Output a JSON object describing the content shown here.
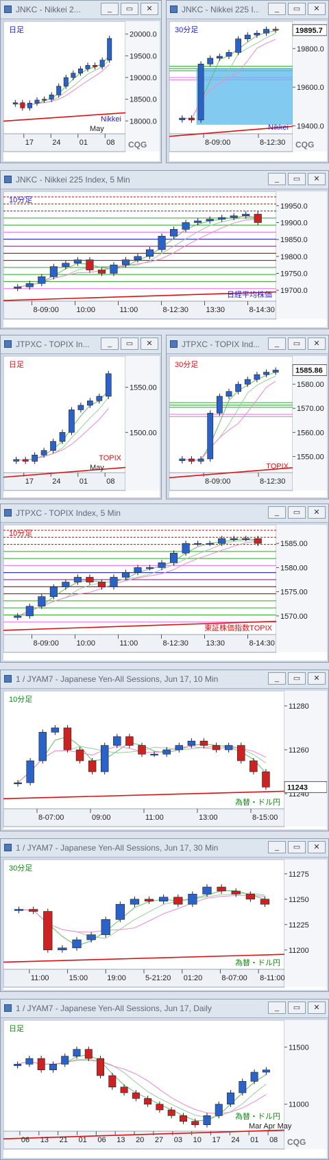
{
  "windows": [
    {
      "id": "w1",
      "title": "JNKC - Nikkei 2...",
      "label": "日足",
      "label_color": "#2222cc",
      "symbol": "Nikkei",
      "symbol_color": "#2222cc",
      "brand": "CQG",
      "right_tag": "",
      "ticks": [
        "20000.0",
        "19500.0",
        "19000.0",
        "18500.0",
        "18000.0"
      ],
      "xticks": [
        "17",
        "24",
        "01",
        "08"
      ],
      "xsub": "May"
    },
    {
      "id": "w2",
      "title": "JNKC - Nikkei 225 I...",
      "label": "30分足",
      "label_color": "#2222cc",
      "symbol": "Nikkei",
      "symbol_color": "#2222cc",
      "brand": "CQG",
      "right_tag": "19895.7",
      "ticks": [
        "19800.0",
        "19600.0",
        "19400.0"
      ],
      "xticks": [
        "8-09:00",
        "8-12:30"
      ],
      "xsub": ""
    },
    {
      "id": "w3",
      "title": "JNKC - Nikkei 225 Index, 5 Min",
      "label": "10分足",
      "label_color": "#2222cc",
      "symbol": "日経平均株価",
      "symbol_color": "#2222cc",
      "brand": "",
      "right_tag": "",
      "ticks": [
        "19950.0",
        "19900.0",
        "19850.0",
        "19800.0",
        "19750.0",
        "19700.0"
      ],
      "xticks": [
        "8-09:00",
        "10:00",
        "11:00",
        "8-12:30",
        "13:30",
        "8-14:30"
      ],
      "xsub": ""
    },
    {
      "id": "w4",
      "title": "JTPXC - TOPIX In...",
      "label": "日足",
      "label_color": "#dd1111",
      "symbol": "TOPIX",
      "symbol_color": "#dd1111",
      "brand": "",
      "right_tag": "",
      "ticks": [
        "1550.00",
        "1500.00"
      ],
      "xticks": [
        "17",
        "24",
        "01",
        "08"
      ],
      "xsub": "May"
    },
    {
      "id": "w5",
      "title": "JTPXC - TOPIX Ind...",
      "label": "30分足",
      "label_color": "#dd1111",
      "symbol": "TOPIX",
      "symbol_color": "#dd1111",
      "brand": "",
      "right_tag": "1585.86",
      "ticks": [
        "1580.00",
        "1570.00",
        "1560.00",
        "1550.00"
      ],
      "xticks": [
        "8-09:00",
        "8-12:30"
      ],
      "xsub": ""
    },
    {
      "id": "w6",
      "title": "JTPXC - TOPIX Index, 5 Min",
      "label": "10分足",
      "label_color": "#dd1111",
      "symbol": "東証株価指数TOPIX",
      "symbol_color": "#dd1111",
      "brand": "",
      "right_tag": "",
      "ticks": [
        "1585.00",
        "1580.00",
        "1575.00",
        "1570.00"
      ],
      "xticks": [
        "8-09:00",
        "10:00",
        "11:00",
        "8-12:30",
        "13:30",
        "8-14:30"
      ],
      "xsub": ""
    },
    {
      "id": "w7",
      "title": "1 / JYAM7 - Japanese Yen-All Sessions, Jun 17, 10 Min",
      "label": "10分足",
      "label_color": "#118811",
      "symbol": "為替・ドル円",
      "symbol_color": "#118811",
      "brand": "",
      "right_tag": "11243",
      "ticks": [
        "11280",
        "11260",
        "11240"
      ],
      "xticks": [
        "8-07:00",
        "09:00",
        "11:00",
        "13:00",
        "8-15:00"
      ],
      "xsub": ""
    },
    {
      "id": "w8",
      "title": "1 / JYAM7 - Japanese Yen-All Sessions, Jun 17, 30 Min",
      "label": "30分足",
      "label_color": "#118811",
      "symbol": "為替・ドル円",
      "symbol_color": "#118811",
      "brand": "",
      "right_tag": "",
      "ticks": [
        "11275",
        "11250",
        "11225",
        "11200"
      ],
      "xticks": [
        "11:00",
        "15:00",
        "19:00",
        "5-21:20",
        "01:20",
        "8-07:00",
        "8-11:00"
      ],
      "xsub": ""
    },
    {
      "id": "w9",
      "title": "1 / JYAM7 - Japanese Yen-All Sessions, Jun 17, Daily",
      "label": "日足",
      "label_color": "#118811",
      "symbol": "為替・ドル円",
      "symbol_color": "#118811",
      "brand": "CQG",
      "right_tag": "",
      "ticks": [
        "11500",
        "11000"
      ],
      "xticks": [
        "06",
        "13",
        "21",
        "01",
        "06",
        "13",
        "20",
        "27",
        "03",
        "10",
        "17",
        "24",
        "01",
        "08"
      ],
      "xsub": "Mar Apr May"
    }
  ],
  "buttons": {
    "minimize": "_",
    "restore": "▭",
    "close": "✕"
  },
  "chart_data": [
    {
      "type": "candlestick",
      "title": "JNKC - Nikkei 2...",
      "ylim": [
        17800,
        20200
      ],
      "series": [
        {
          "name": "Nikkei",
          "values": [
            18420,
            18300,
            18410,
            18480,
            18500,
            18600,
            18800,
            19000,
            19100,
            19200,
            19280,
            19250,
            19400,
            19900
          ]
        }
      ]
    },
    {
      "type": "candlestick",
      "title": "JNKC - Nikkei 225 I...",
      "ylim": [
        19380,
        19920
      ],
      "series": [
        {
          "name": "Nikkei",
          "values": [
            19440,
            19430,
            19720,
            19750,
            19760,
            19780,
            19850,
            19870,
            19880,
            19900,
            19895.7
          ]
        }
      ]
    },
    {
      "type": "candlestick",
      "title": "JNKC - Nikkei 225 Index, 5 Min",
      "ylim": [
        19680,
        19980
      ],
      "series": [
        {
          "name": "日経平均株価",
          "values": [
            19710,
            19720,
            19740,
            19770,
            19780,
            19790,
            19760,
            19750,
            19775,
            19790,
            19800,
            19820,
            19860,
            19880,
            19900,
            19905,
            19910,
            19915,
            19920,
            19925,
            19900
          ]
        }
      ]
    },
    {
      "type": "candlestick",
      "title": "JTPXC - TOPIX In...",
      "ylim": [
        1460,
        1580
      ],
      "series": [
        {
          "name": "TOPIX",
          "values": [
            1470,
            1468,
            1475,
            1480,
            1490,
            1500,
            1525,
            1530,
            1535,
            1540,
            1565
          ]
        }
      ]
    },
    {
      "type": "candlestick",
      "title": "JTPXC - TOPIX Ind...",
      "ylim": [
        1545,
        1590
      ],
      "series": [
        {
          "name": "TOPIX",
          "values": [
            1549,
            1548,
            1549,
            1568,
            1575,
            1577,
            1580,
            1582,
            1584,
            1585,
            1585.86
          ]
        }
      ]
    },
    {
      "type": "candlestick",
      "title": "JTPXC - TOPIX Index, 5 Min",
      "ylim": [
        1567,
        1588
      ],
      "series": [
        {
          "name": "東証株価指数TOPIX",
          "values": [
            1570,
            1572,
            1574,
            1576,
            1577,
            1578,
            1577,
            1576,
            1578,
            1579,
            1580,
            1580,
            1581,
            1583,
            1585,
            1585,
            1585,
            1586,
            1586,
            1586,
            1585
          ]
        }
      ]
    },
    {
      "type": "candlestick",
      "title": "1 / JYAM7 - Japanese Yen-All Sessions, Jun 17, 10 Min",
      "ylim": [
        11235,
        11285
      ],
      "series": [
        {
          "name": "為替・ドル円",
          "values": [
            11245,
            11255,
            11268,
            11270,
            11260,
            11255,
            11250,
            11262,
            11266,
            11262,
            11258,
            11258,
            11260,
            11262,
            11264,
            11262,
            11260,
            11262,
            11255,
            11250,
            11243
          ]
        }
      ]
    },
    {
      "type": "candlestick",
      "title": "1 / JYAM7 - Japanese Yen-All Sessions, Jun 17, 30 Min",
      "ylim": [
        11185,
        11285
      ],
      "series": [
        {
          "name": "為替・ドル円",
          "values": [
            11240,
            11238,
            11200,
            11202,
            11210,
            11215,
            11230,
            11245,
            11250,
            11248,
            11252,
            11245,
            11255,
            11262,
            11258,
            11255,
            11250,
            11245
          ]
        }
      ]
    },
    {
      "type": "candlestick",
      "title": "1 / JYAM7 - Japanese Yen-All Sessions, Jun 17, Daily",
      "ylim": [
        10800,
        11700
      ],
      "series": [
        {
          "name": "為替・ドル円",
          "values": [
            11350,
            11400,
            11300,
            11350,
            11420,
            11480,
            11400,
            11250,
            11150,
            11100,
            11050,
            11000,
            10950,
            10900,
            10850,
            10820,
            10900,
            11000,
            11100,
            11200,
            11280,
            11300
          ]
        }
      ]
    }
  ]
}
